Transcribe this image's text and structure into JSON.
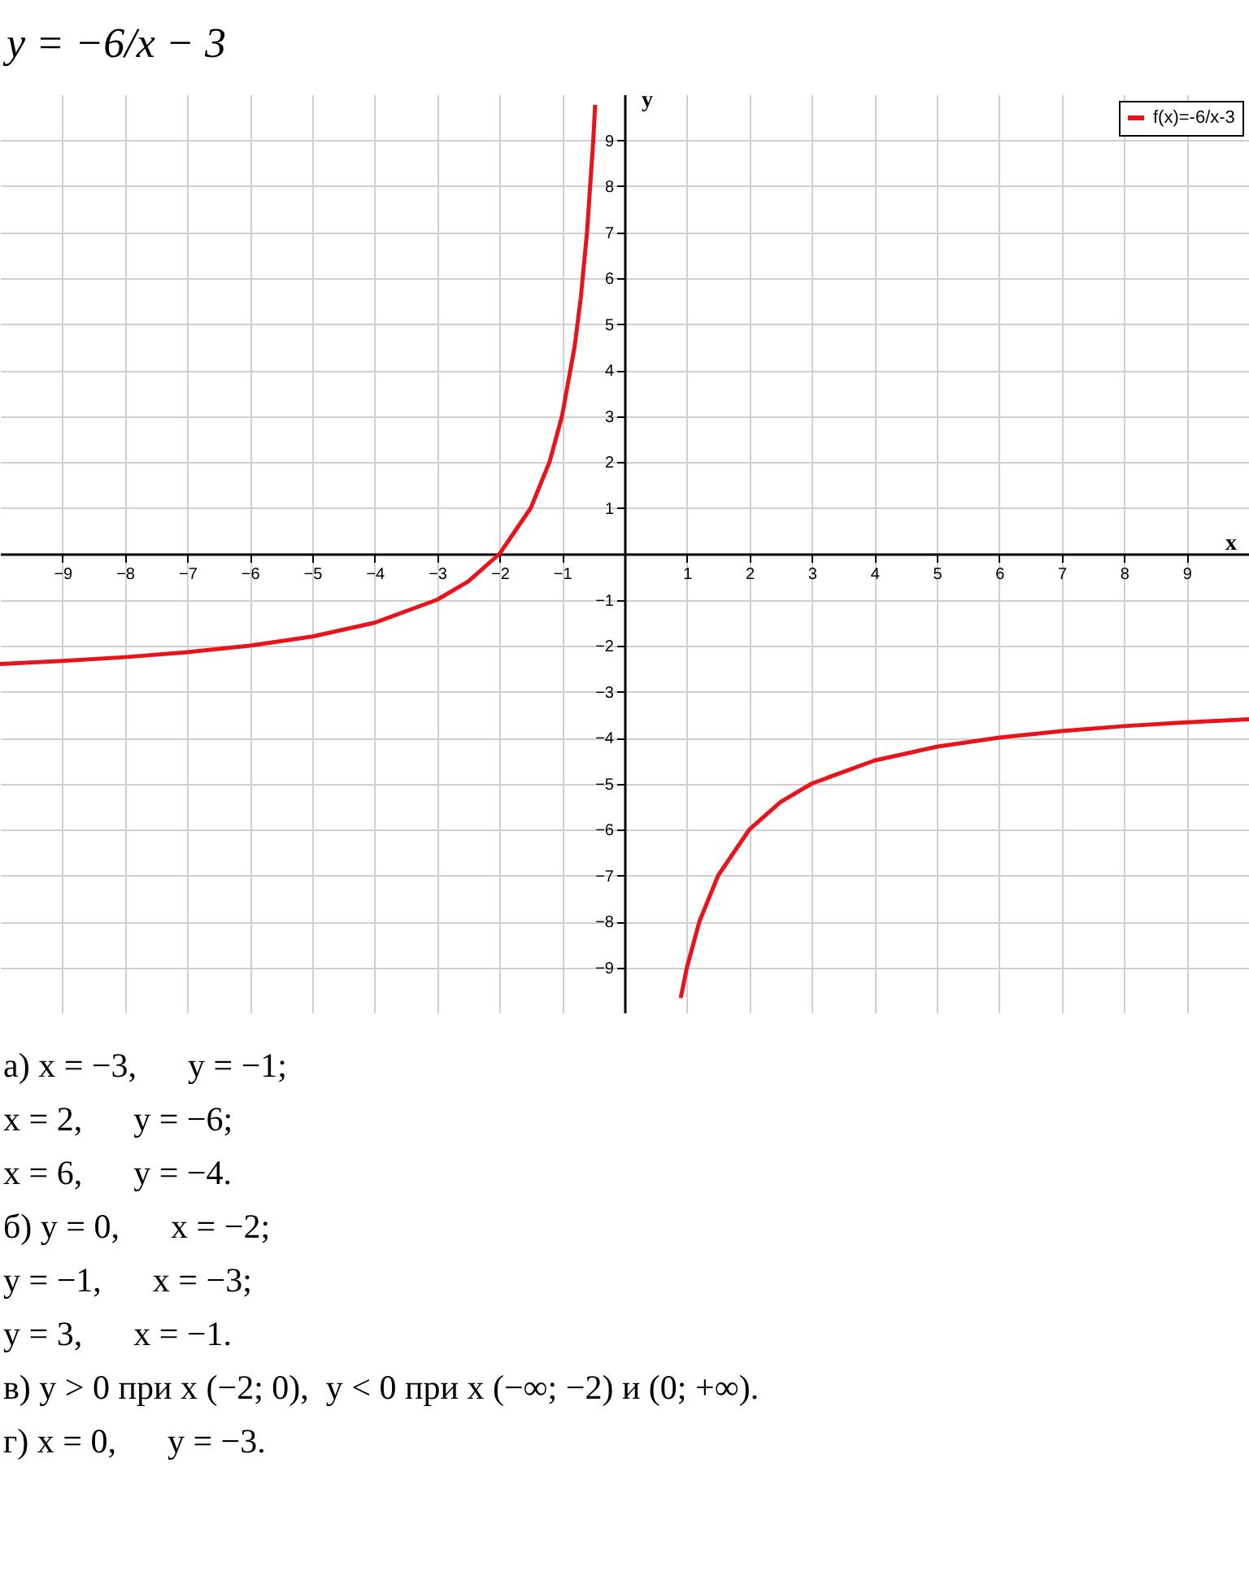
{
  "chart_data": {
    "type": "line",
    "title": "y = −6/x − 3",
    "xlabel": "x",
    "ylabel": "y",
    "x": [
      -10,
      -9,
      -8,
      -7,
      -6,
      -5,
      -4,
      -3,
      -2.5,
      -2,
      -1.5,
      -1.2,
      -1,
      -0.8,
      -0.7,
      -0.6,
      -0.5,
      -0.47,
      0,
      0.9,
      1,
      1.2,
      1.5,
      2,
      2.5,
      3,
      4,
      5,
      6,
      7,
      8,
      9,
      10
    ],
    "series": [
      {
        "name": "f(x)=-6/x-3",
        "color": "#e8141b",
        "values": [
          -2.4,
          -2.33,
          -2.25,
          -2.14,
          -2,
          -1.8,
          -1.5,
          -1,
          -0.6,
          0,
          1,
          2,
          3,
          4.5,
          5.57,
          7,
          9,
          9.77,
          null,
          -9.67,
          -9,
          -8,
          -7,
          -6,
          -5.4,
          -5,
          -4.5,
          -4.2,
          -4,
          -3.86,
          -3.75,
          -3.67,
          -3.6
        ]
      }
    ],
    "xlim": [
      -10,
      10
    ],
    "ylim": [
      -10,
      10
    ],
    "xticks": [
      -9,
      -8,
      -7,
      -6,
      -5,
      -4,
      -3,
      -2,
      -1,
      1,
      2,
      3,
      4,
      5,
      6,
      7,
      8,
      9
    ],
    "yticks": [
      -9,
      -8,
      -7,
      -6,
      -5,
      -4,
      -3,
      -2,
      -1,
      1,
      2,
      3,
      4,
      5,
      6,
      7,
      8,
      9
    ],
    "grid": true,
    "legend": "top right",
    "marker": "none",
    "line_style": "solid",
    "annotations": [
      "а) x = −3,      y = −1;",
      "x = 2,      y = −6;",
      "x = 6,      y = −4.",
      "б) y = 0,      x = −2;",
      "y = −1,      x = −3;",
      "y = 3,      x = −1.",
      "в) y > 0 при x (−2; 0),  y < 0 при x (−∞; −2) и (0; +∞).",
      "г) x = 0,      y = −3."
    ]
  }
}
